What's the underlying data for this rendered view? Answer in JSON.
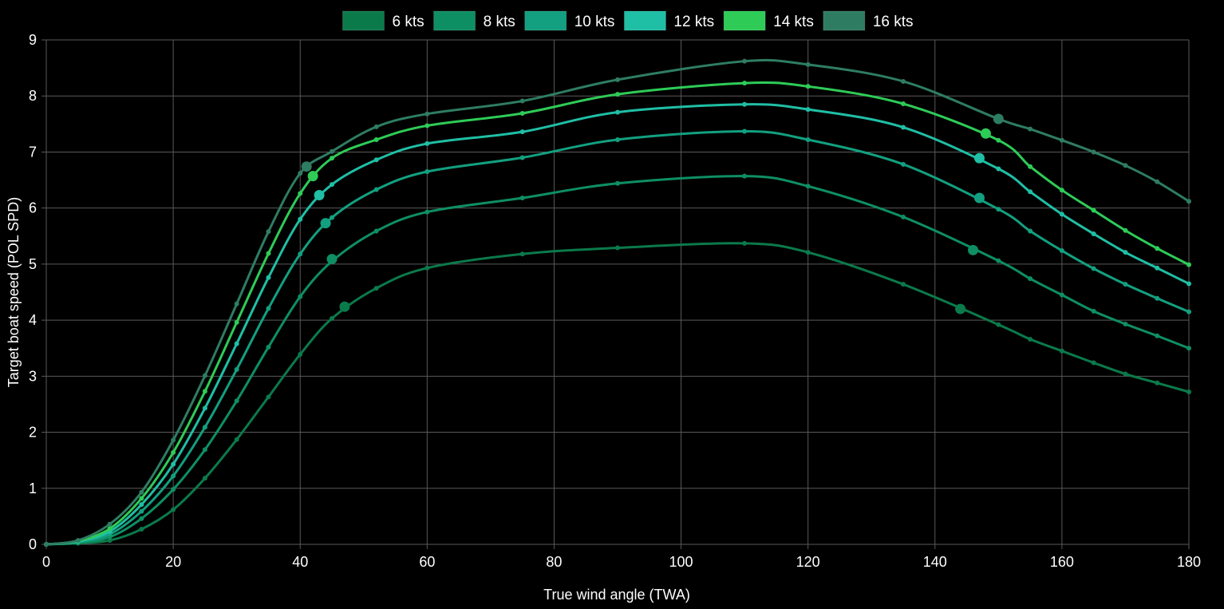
{
  "chart_data": {
    "type": "line",
    "xlabel": "True wind angle (TWA)",
    "ylabel": "Target boat speed (POL SPD)",
    "xlim": [
      0,
      180
    ],
    "ylim": [
      0,
      9
    ],
    "x_ticks": [
      0,
      20,
      40,
      60,
      80,
      100,
      120,
      140,
      160,
      180
    ],
    "y_ticks": [
      0,
      1,
      2,
      3,
      4,
      5,
      6,
      7,
      8,
      9
    ],
    "grid": true,
    "legend_position": "top-center",
    "x": [
      0,
      5,
      10,
      15,
      20,
      25,
      30,
      35,
      40,
      45,
      52,
      60,
      75,
      90,
      110,
      120,
      135,
      150,
      155,
      160,
      165,
      170,
      175,
      180
    ],
    "series": [
      {
        "name": "6 kts",
        "color": "#0b7a4b",
        "values": [
          0,
          0.02,
          0.07,
          0.27,
          0.62,
          1.18,
          1.87,
          2.63,
          3.39,
          4.03,
          4.57,
          4.93,
          5.18,
          5.29,
          5.37,
          5.21,
          4.64,
          3.92,
          3.66,
          3.45,
          3.24,
          3.04,
          2.88,
          2.72
        ],
        "optimal": {
          "x": 47,
          "y": 4.24
        },
        "optimal_run": {
          "x": 144,
          "y": 4.2
        }
      },
      {
        "name": "8 kts",
        "color": "#0e8f63",
        "values": [
          0,
          0.03,
          0.13,
          0.46,
          0.98,
          1.69,
          2.56,
          3.52,
          4.42,
          5.05,
          5.59,
          5.93,
          6.18,
          6.44,
          6.57,
          6.39,
          5.84,
          5.06,
          4.74,
          4.45,
          4.16,
          3.93,
          3.72,
          3.5
        ],
        "optimal": {
          "x": 45,
          "y": 5.09
        },
        "optimal_run": {
          "x": 146,
          "y": 5.25
        }
      },
      {
        "name": "10 kts",
        "color": "#12a080",
        "values": [
          0,
          0.04,
          0.18,
          0.59,
          1.22,
          2.09,
          3.12,
          4.21,
          5.18,
          5.83,
          6.33,
          6.65,
          6.9,
          7.22,
          7.37,
          7.22,
          6.78,
          5.98,
          5.59,
          5.24,
          4.92,
          4.64,
          4.39,
          4.15
        ],
        "optimal": {
          "x": 44,
          "y": 5.73
        },
        "optimal_run": {
          "x": 147,
          "y": 6.18
        }
      },
      {
        "name": "12 kts",
        "color": "#1fbfa5",
        "values": [
          0,
          0.05,
          0.23,
          0.71,
          1.43,
          2.43,
          3.58,
          4.76,
          5.8,
          6.42,
          6.86,
          7.15,
          7.36,
          7.71,
          7.85,
          7.76,
          7.44,
          6.7,
          6.29,
          5.89,
          5.54,
          5.21,
          4.93,
          4.65
        ],
        "optimal": {
          "x": 43,
          "y": 6.23
        },
        "optimal_run": {
          "x": 147,
          "y": 6.89
        }
      },
      {
        "name": "14 kts",
        "color": "#2ecc57",
        "values": [
          0,
          0.06,
          0.28,
          0.82,
          1.64,
          2.73,
          3.96,
          5.19,
          6.26,
          6.89,
          7.22,
          7.47,
          7.69,
          8.03,
          8.23,
          8.17,
          7.86,
          7.21,
          6.74,
          6.32,
          5.96,
          5.6,
          5.28,
          4.99
        ],
        "optimal": {
          "x": 42,
          "y": 6.57
        },
        "optimal_run": {
          "x": 148,
          "y": 7.33
        }
      },
      {
        "name": "16 kts",
        "color": "#2e7d63",
        "values": [
          0,
          0.07,
          0.36,
          0.93,
          1.86,
          3.01,
          4.29,
          5.58,
          6.62,
          7.01,
          7.45,
          7.68,
          7.91,
          8.29,
          8.62,
          8.56,
          8.26,
          7.59,
          7.41,
          7.21,
          7.0,
          6.76,
          6.47,
          6.12
        ],
        "optimal": {
          "x": 41,
          "y": 6.74
        },
        "optimal_run": {
          "x": 150,
          "y": 7.59
        }
      }
    ]
  }
}
